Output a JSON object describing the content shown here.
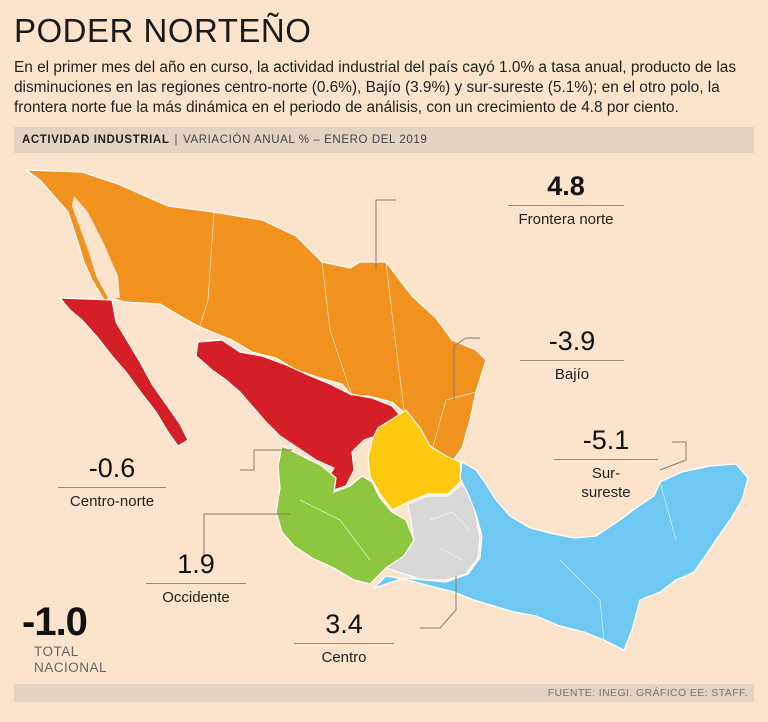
{
  "header": {
    "title": "PODER NORTEÑO",
    "intro": "En el primer mes del año en curso, la actividad industrial del país cayó 1.0% a tasa anual, producto de las disminuciones en las regiones centro-norte (0.6%), Bajío (3.9%) y sur-sureste (5.1%); en el otro polo, la frontera norte fue la más dinámica en el periodo de análisis, con un crecimiento de 4.8 por ciento."
  },
  "subheader": {
    "label": "ACTIVIDAD INDUSTRIAL",
    "separator": "|",
    "detail": "VARIACIÓN ANUAL % – ENERO DEL 2019"
  },
  "regions": {
    "frontera_norte": {
      "value": "4.8",
      "name": "Frontera norte",
      "color": "#f1921f"
    },
    "bajio": {
      "value": "-3.9",
      "name": "Bajío",
      "color": "#fdc80e"
    },
    "sur_sureste": {
      "value": "-5.1",
      "name_line1": "Sur-",
      "name_line2": "sureste",
      "color": "#6ec8f2"
    },
    "centro_norte": {
      "value": "-0.6",
      "name": "Centro-norte",
      "color": "#d41f26"
    },
    "occidente": {
      "value": "1.9",
      "name": "Occidente",
      "color": "#8dc63f"
    },
    "centro": {
      "value": "3.4",
      "name": "Centro",
      "color": "#d8d8d8"
    }
  },
  "total": {
    "value": "-1.0",
    "line1": "TOTAL",
    "line2": "NACIONAL"
  },
  "footer": {
    "source": "FUENTE: INEGI. GRÁFICO EE: STAFF."
  }
}
